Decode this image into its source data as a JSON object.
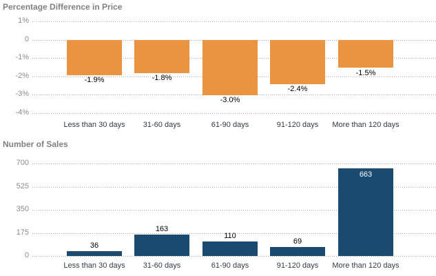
{
  "page": {
    "background": "#ffffff"
  },
  "styles": {
    "title_color": "#808080",
    "tick_label_color": "#8a8a8a",
    "grid_color": "#a8a8a8",
    "category_label_color": "#303a46"
  },
  "chart_data": [
    {
      "type": "bar",
      "title": "Percentage Difference in Price",
      "categories": [
        "Less than 30 days",
        "31-60 days",
        "61-90 days",
        "91-120 days",
        "More than 120 days"
      ],
      "values": [
        -1.9,
        -1.8,
        -3.0,
        -2.4,
        -1.5
      ],
      "value_labels": [
        "-1.9%",
        "-1.8%",
        "-3.0%",
        "-2.4%",
        "-1.5%"
      ],
      "ylim": [
        -4,
        1
      ],
      "y_ticks": [
        1,
        0,
        -1,
        -2,
        -3,
        -4
      ],
      "y_tick_labels": [
        "1%",
        "0",
        "-1%",
        "-2%",
        "-3%",
        "-4%"
      ],
      "baseline": 0,
      "grid": "dotted",
      "legend": "none",
      "bar_color": "#EA9441",
      "value_label_color": "#000000",
      "inside_labels": [
        false,
        false,
        false,
        false,
        false
      ]
    },
    {
      "type": "bar",
      "title": "Number of Sales",
      "categories": [
        "Less than 30 days",
        "31-60 days",
        "61-90 days",
        "91-120 days",
        "More than 120 days"
      ],
      "values": [
        36,
        163,
        110,
        69,
        663
      ],
      "value_labels": [
        "36",
        "163",
        "110",
        "69",
        "663"
      ],
      "ylim": [
        0,
        700
      ],
      "y_ticks": [
        700,
        525,
        350,
        175,
        0
      ],
      "y_tick_labels": [
        "700",
        "525",
        "350",
        "175",
        "0"
      ],
      "baseline": 0,
      "grid": "dotted",
      "legend": "none",
      "bar_color": "#1B4A70",
      "value_label_color": "#000000",
      "inside_label_color": "#ffffff",
      "inside_labels": [
        false,
        false,
        false,
        false,
        true
      ]
    }
  ]
}
